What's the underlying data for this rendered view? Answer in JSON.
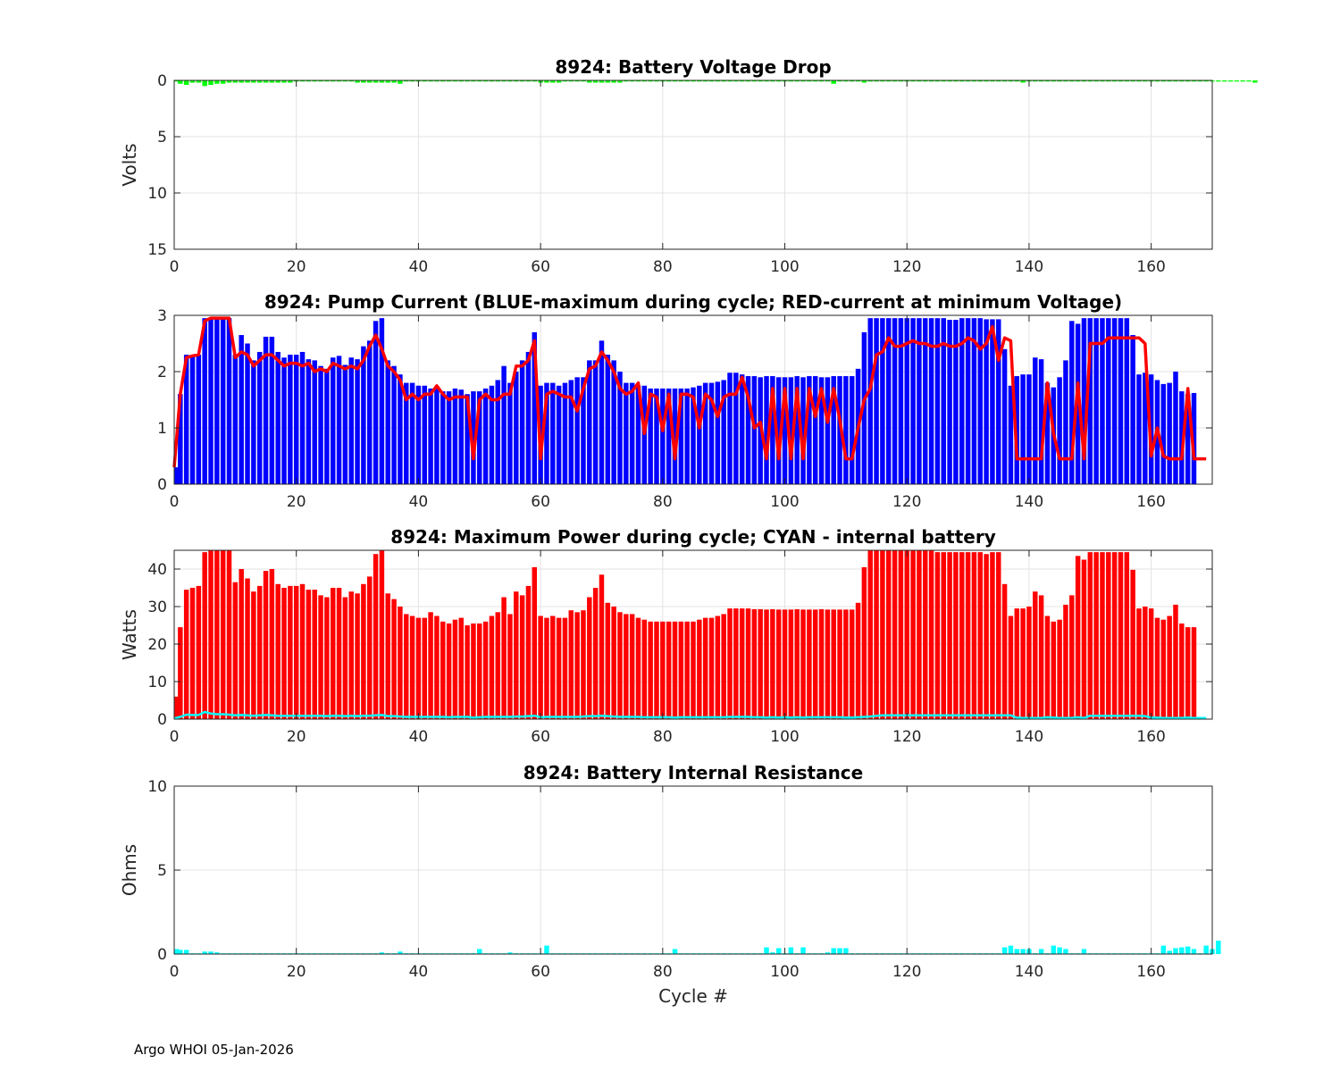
{
  "footer": "Argo WHOI 05-Jan-2026",
  "chart_data": [
    {
      "type": "bar",
      "title": "8924: Battery Voltage Drop",
      "xlabel": "",
      "ylabel": "Volts",
      "xlim": [
        0,
        170
      ],
      "ylim": [
        0,
        15
      ],
      "y_reversed": true,
      "xticks": [
        0,
        20,
        40,
        60,
        80,
        100,
        120,
        140,
        160
      ],
      "yticks": [
        0,
        5,
        10,
        15
      ],
      "grid": true,
      "colors": {
        "bars": "#00ff00"
      },
      "x_start": 0,
      "values": [
        0.1,
        0.3,
        0.4,
        0.2,
        0.2,
        0.5,
        0.4,
        0.3,
        0.3,
        0.2,
        0.2,
        0.2,
        0.2,
        0.2,
        0.2,
        0.2,
        0.2,
        0.2,
        0.2,
        0.2,
        0.1,
        0.1,
        0.1,
        0.1,
        0.1,
        0.1,
        0.1,
        0.1,
        0.1,
        0.1,
        0.2,
        0.2,
        0.2,
        0.2,
        0.2,
        0.2,
        0.2,
        0.3,
        0.1,
        0.1,
        0.1,
        0.1,
        0.1,
        0.1,
        0.1,
        0.1,
        0.1,
        0.1,
        0.1,
        0.1,
        0.1,
        0.1,
        0.1,
        0.1,
        0.1,
        0.1,
        0.1,
        0.1,
        0.1,
        0.1,
        0.2,
        0.2,
        0.2,
        0.2,
        0.1,
        0.1,
        0.1,
        0.1,
        0.2,
        0.2,
        0.2,
        0.2,
        0.2,
        0.2,
        0.1,
        0.1,
        0.1,
        0.1,
        0.1,
        0.1,
        0.1,
        0.1,
        0.1,
        0.1,
        0.1,
        0.1,
        0.1,
        0.1,
        0.1,
        0.1,
        0.1,
        0.1,
        0.1,
        0.1,
        0.1,
        0.1,
        0.1,
        0.1,
        0.1,
        0.1,
        0.1,
        0.1,
        0.1,
        0.1,
        0.1,
        0.1,
        0.1,
        0.1,
        0.3,
        0.1,
        0.1,
        0.1,
        0.1,
        0.2,
        0.1,
        0.1,
        0.1,
        0.1,
        0.1,
        0.1,
        0.1,
        0.1,
        0.1,
        0.1,
        0.1,
        0.1,
        0.1,
        0.1,
        0.1,
        0.1,
        0.1,
        0.1,
        0.1,
        0.1,
        0.1,
        0.1,
        0.1,
        0.1,
        0.1,
        0.2,
        0.1,
        0.1,
        0.1,
        0.1,
        0.1,
        0.1,
        0.1,
        0.1,
        0.1,
        0.1,
        0.1,
        0.1,
        0.1,
        0.1,
        0.1,
        0.1,
        0.1,
        0.1,
        0.1,
        0.1,
        0.1,
        0.1,
        0.1,
        0.1,
        0.1,
        0.1,
        0.1,
        0.1,
        0.1,
        0.1,
        0.1,
        0.1,
        0.1,
        0.1,
        0.1,
        0.1,
        0.1,
        0.2
      ]
    },
    {
      "type": "bar+line",
      "title": "8924: Pump Current (BLUE-maximum during cycle; RED-current at minimum Voltage)",
      "xlabel": "",
      "ylabel": "",
      "xlim": [
        0,
        170
      ],
      "ylim": [
        0,
        3
      ],
      "xticks": [
        0,
        20,
        40,
        60,
        80,
        100,
        120,
        140,
        160
      ],
      "yticks": [
        0,
        1,
        2,
        3
      ],
      "grid": true,
      "colors": {
        "bars": "#0000ff",
        "line": "#ff0000"
      },
      "x_start": 0,
      "bars": [
        0.3,
        1.6,
        2.3,
        2.3,
        2.3,
        2.95,
        2.95,
        2.95,
        2.95,
        2.95,
        2.3,
        2.65,
        2.5,
        2.2,
        2.35,
        2.62,
        2.62,
        2.35,
        2.25,
        2.3,
        2.3,
        2.35,
        2.22,
        2.2,
        2.1,
        2.05,
        2.25,
        2.28,
        2.12,
        2.25,
        2.22,
        2.45,
        2.55,
        2.9,
        2.95,
        2.2,
        2.1,
        1.95,
        1.8,
        1.8,
        1.75,
        1.75,
        1.7,
        1.7,
        1.65,
        1.65,
        1.7,
        1.68,
        1.6,
        1.65,
        1.65,
        1.7,
        1.75,
        1.85,
        2.1,
        1.8,
        2.0,
        2.2,
        2.35,
        2.7,
        1.75,
        1.8,
        1.8,
        1.75,
        1.8,
        1.85,
        1.9,
        1.9,
        2.2,
        2.2,
        2.55,
        2.3,
        2.2,
        2.0,
        1.8,
        1.8,
        1.75,
        1.75,
        1.7,
        1.7,
        1.7,
        1.7,
        1.7,
        1.7,
        1.7,
        1.72,
        1.75,
        1.8,
        1.8,
        1.82,
        1.85,
        1.98,
        1.98,
        1.95,
        1.92,
        1.92,
        1.9,
        1.92,
        1.92,
        1.9,
        1.9,
        1.9,
        1.92,
        1.9,
        1.92,
        1.92,
        1.9,
        1.9,
        1.92,
        1.92,
        1.92,
        1.92,
        2.05,
        2.7,
        2.95,
        2.95,
        2.95,
        2.95,
        2.95,
        2.95,
        2.95,
        2.95,
        2.95,
        2.95,
        2.95,
        2.95,
        2.95,
        2.92,
        2.92,
        2.95,
        2.95,
        2.95,
        2.95,
        2.93,
        2.93,
        2.93,
        2.4,
        1.75,
        1.92,
        1.95,
        1.95,
        2.25,
        2.22,
        1.8,
        1.72,
        1.9,
        2.2,
        2.9,
        2.85,
        2.95,
        2.95,
        2.95,
        2.95,
        2.95,
        2.95,
        2.95,
        2.95,
        2.65,
        1.95,
        1.98,
        1.95,
        1.85,
        1.78,
        1.8,
        2.0,
        1.65,
        1.6,
        1.62
      ],
      "line": [
        0.3,
        1.6,
        2.25,
        2.28,
        2.3,
        2.9,
        2.95,
        2.95,
        2.95,
        2.95,
        2.25,
        2.35,
        2.3,
        2.1,
        2.2,
        2.3,
        2.3,
        2.2,
        2.1,
        2.15,
        2.15,
        2.1,
        2.15,
        2.0,
        2.05,
        2.0,
        2.15,
        2.1,
        2.05,
        2.1,
        2.05,
        2.2,
        2.45,
        2.65,
        2.4,
        2.1,
        2.0,
        1.85,
        1.5,
        1.6,
        1.5,
        1.6,
        1.6,
        1.75,
        1.6,
        1.5,
        1.55,
        1.55,
        1.55,
        0.45,
        1.5,
        1.6,
        1.5,
        1.5,
        1.6,
        1.6,
        2.1,
        2.1,
        2.2,
        2.55,
        0.45,
        1.6,
        1.65,
        1.6,
        1.55,
        1.55,
        1.3,
        1.7,
        2.05,
        2.1,
        2.35,
        2.2,
        2.0,
        1.7,
        1.6,
        1.65,
        1.8,
        0.9,
        1.6,
        1.55,
        0.95,
        1.6,
        0.45,
        1.6,
        1.6,
        1.55,
        1.0,
        1.6,
        1.5,
        1.2,
        1.55,
        1.6,
        1.6,
        1.9,
        1.55,
        1.0,
        1.1,
        0.45,
        1.7,
        0.45,
        1.7,
        0.45,
        1.7,
        0.45,
        1.7,
        1.2,
        1.7,
        1.1,
        1.7,
        1.15,
        0.45,
        0.45,
        1.0,
        1.5,
        1.7,
        2.3,
        2.35,
        2.6,
        2.45,
        2.45,
        2.5,
        2.55,
        2.5,
        2.5,
        2.45,
        2.45,
        2.5,
        2.45,
        2.45,
        2.5,
        2.6,
        2.55,
        2.4,
        2.5,
        2.8,
        2.2,
        2.6,
        2.55,
        0.45,
        0.45,
        0.45,
        0.45,
        0.45,
        1.8,
        0.9,
        0.45,
        0.45,
        0.45,
        1.8,
        0.45,
        2.5,
        2.5,
        2.5,
        2.6,
        2.6,
        2.6,
        2.6,
        2.6,
        2.6,
        2.5,
        0.5,
        1.0,
        0.5,
        0.45,
        0.45,
        0.45,
        1.7,
        0.45,
        0.45,
        0.45
      ]
    },
    {
      "type": "bar+line",
      "title": "8924: Maximum Power during cycle; CYAN - internal battery",
      "xlabel": "",
      "ylabel": "Watts",
      "xlim": [
        0,
        170
      ],
      "ylim": [
        0,
        45
      ],
      "xticks": [
        0,
        20,
        40,
        60,
        80,
        100,
        120,
        140,
        160
      ],
      "yticks": [
        0,
        10,
        20,
        30,
        40
      ],
      "grid": true,
      "colors": {
        "bars": "#ff0000",
        "line": "#00ffff"
      },
      "x_start": 0,
      "bars": [
        6,
        24.5,
        34.5,
        35,
        35.5,
        44.5,
        45,
        45,
        45,
        45,
        36.5,
        40,
        37.5,
        34,
        35.5,
        39.5,
        40,
        36,
        35,
        35.5,
        35.5,
        36,
        34.5,
        34.5,
        33,
        32.5,
        35,
        35,
        32.5,
        34,
        33.5,
        36,
        38,
        44,
        45,
        33.5,
        32,
        30,
        28,
        27.5,
        27,
        27,
        28.5,
        27.5,
        26,
        25.5,
        26.5,
        27,
        25,
        25.5,
        25.5,
        26,
        27.5,
        28.5,
        32.5,
        28,
        34,
        33,
        35.5,
        40.5,
        27.5,
        27,
        27.5,
        27,
        27,
        29,
        28.5,
        29,
        32.5,
        35,
        38.5,
        31,
        30,
        28.5,
        28,
        28,
        27,
        26.5,
        26,
        26,
        26,
        26,
        26,
        26,
        26,
        26,
        26.5,
        27,
        27,
        27.5,
        28,
        29.5,
        29.5,
        29.5,
        29.5,
        29.3,
        29.3,
        29.2,
        29.3,
        29.2,
        29.2,
        29.2,
        29.3,
        29.2,
        29.2,
        29.2,
        29.3,
        29.2,
        29.2,
        29.2,
        29.2,
        29.2,
        31,
        40.5,
        45,
        45,
        45,
        45,
        45,
        45,
        45,
        45,
        45,
        45,
        45,
        44.5,
        44.5,
        44.5,
        44.5,
        44.5,
        44.5,
        44.5,
        44.5,
        44,
        44.5,
        44.5,
        36,
        27.5,
        29.5,
        29.5,
        30,
        34,
        33,
        27.5,
        26,
        26.5,
        30.5,
        33,
        43.5,
        42.5,
        44.5,
        44.5,
        44.5,
        44.5,
        44.5,
        44.5,
        44.5,
        39.8,
        29.5,
        30,
        29.5,
        27,
        26.5,
        27.5,
        30.5,
        25.5,
        24.5,
        24.5
      ],
      "line": [
        0.2,
        0.6,
        1.2,
        1.1,
        1.1,
        1.9,
        1.5,
        1.3,
        1.3,
        1.2,
        1.0,
        1.1,
        1.0,
        0.9,
        1.0,
        1.1,
        1.0,
        0.9,
        0.9,
        0.9,
        0.9,
        0.9,
        0.9,
        0.9,
        0.9,
        0.8,
        0.9,
        0.9,
        0.8,
        0.9,
        0.8,
        0.9,
        0.9,
        1.0,
        1.1,
        0.8,
        0.8,
        0.7,
        0.6,
        0.6,
        0.6,
        0.6,
        0.6,
        0.6,
        0.6,
        0.5,
        0.6,
        0.6,
        0.6,
        0.4,
        0.5,
        0.6,
        0.6,
        0.6,
        0.6,
        0.6,
        0.7,
        0.7,
        0.8,
        0.9,
        0.5,
        0.6,
        0.6,
        0.6,
        0.6,
        0.6,
        0.6,
        0.7,
        0.8,
        0.8,
        0.9,
        0.8,
        0.7,
        0.6,
        0.6,
        0.6,
        0.6,
        0.5,
        0.5,
        0.5,
        0.5,
        0.5,
        0.4,
        0.5,
        0.5,
        0.5,
        0.5,
        0.5,
        0.5,
        0.5,
        0.5,
        0.6,
        0.6,
        0.6,
        0.6,
        0.5,
        0.5,
        0.4,
        0.5,
        0.4,
        0.5,
        0.4,
        0.5,
        0.4,
        0.5,
        0.5,
        0.5,
        0.5,
        0.5,
        0.5,
        0.4,
        0.4,
        0.5,
        0.6,
        0.7,
        0.9,
        1.0,
        1.0,
        1.0,
        1.0,
        1.0,
        1.0,
        1.0,
        1.0,
        1.0,
        1.0,
        1.0,
        1.0,
        1.0,
        1.0,
        1.0,
        1.0,
        1.0,
        1.0,
        1.0,
        1.0,
        1.0,
        1.0,
        0.4,
        0.3,
        0.3,
        0.3,
        0.3,
        0.5,
        0.4,
        0.3,
        0.3,
        0.3,
        0.5,
        0.3,
        0.9,
        0.9,
        0.9,
        0.9,
        0.9,
        0.9,
        0.9,
        0.9,
        0.9,
        0.8,
        0.4,
        0.4,
        0.3,
        0.3,
        0.3,
        0.3,
        0.4,
        0.3,
        0.3,
        0.3
      ]
    },
    {
      "type": "bar",
      "title": "8924: Battery Internal Resistance",
      "xlabel": "Cycle #",
      "ylabel": "Ohms",
      "xlim": [
        0,
        170
      ],
      "ylim": [
        0,
        10
      ],
      "xticks": [
        0,
        20,
        40,
        60,
        80,
        100,
        120,
        140,
        160
      ],
      "yticks": [
        0,
        5,
        10
      ],
      "grid": true,
      "colors": {
        "bars": "#00ffff"
      },
      "x_start": 0,
      "values": [
        0.3,
        0.25,
        0.25,
        0.05,
        0.05,
        0.15,
        0.15,
        0.1,
        0.05,
        0.05,
        0.05,
        0.05,
        0.05,
        0.05,
        0.05,
        0.05,
        0.05,
        0.05,
        0.05,
        0.05,
        0.05,
        0.05,
        0.05,
        0.05,
        0.05,
        0.05,
        0.05,
        0.05,
        0.05,
        0.05,
        0.05,
        0.05,
        0.05,
        0.05,
        0.1,
        0.05,
        0.05,
        0.15,
        0.05,
        0.05,
        0.05,
        0.05,
        0.05,
        0.05,
        0.05,
        0.05,
        0.05,
        0.05,
        0.05,
        0.05,
        0.3,
        0.05,
        0.05,
        0.05,
        0.05,
        0.1,
        0.05,
        0.05,
        0.05,
        0.05,
        0.05,
        0.5,
        0.05,
        0.05,
        0.05,
        0.05,
        0.05,
        0.05,
        0.05,
        0.05,
        0.05,
        0.05,
        0.05,
        0.05,
        0.05,
        0.05,
        0.05,
        0.05,
        0.05,
        0.05,
        0.05,
        0.05,
        0.3,
        0.05,
        0.05,
        0.05,
        0.05,
        0.05,
        0.05,
        0.05,
        0.05,
        0.05,
        0.05,
        0.05,
        0.05,
        0.05,
        0.05,
        0.4,
        0.1,
        0.35,
        0.05,
        0.4,
        0.05,
        0.4,
        0.05,
        0.05,
        0.05,
        0.1,
        0.35,
        0.35,
        0.35,
        0.05,
        0.05,
        0.05,
        0.05,
        0.05,
        0.05,
        0.05,
        0.05,
        0.05,
        0.05,
        0.05,
        0.05,
        0.05,
        0.05,
        0.05,
        0.05,
        0.05,
        0.05,
        0.05,
        0.05,
        0.05,
        0.05,
        0.05,
        0.05,
        0.05,
        0.4,
        0.5,
        0.3,
        0.3,
        0.3,
        0.05,
        0.3,
        0.05,
        0.5,
        0.4,
        0.3,
        0.05,
        0.05,
        0.3,
        0.05,
        0.05,
        0.05,
        0.05,
        0.05,
        0.05,
        0.05,
        0.05,
        0.05,
        0.05,
        0.05,
        0.05,
        0.5,
        0.2,
        0.35,
        0.4,
        0.45,
        0.3,
        0.05,
        0.5,
        0.3,
        0.8
      ]
    }
  ]
}
